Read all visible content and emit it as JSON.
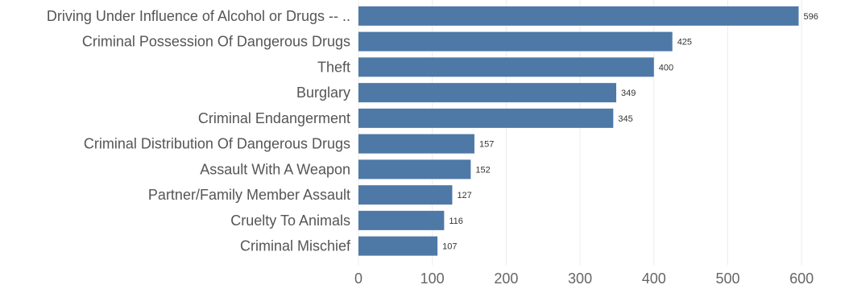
{
  "chart_data": {
    "type": "bar",
    "orientation": "horizontal",
    "title": "",
    "xlabel": "",
    "ylabel": "",
    "categories": [
      "Driving Under Influence of Alcohol or Drugs -- ..",
      "Criminal Possession Of Dangerous Drugs",
      "Theft",
      "Burglary",
      "Criminal Endangerment",
      "Criminal Distribution Of Dangerous Drugs",
      "Assault With A Weapon",
      "Partner/Family Member Assault",
      "Cruelty To Animals",
      "Criminal Mischief"
    ],
    "values": [
      596,
      425,
      400,
      349,
      345,
      157,
      152,
      127,
      116,
      107
    ],
    "xlim": [
      0,
      650
    ],
    "ticks": [
      0,
      100,
      200,
      300,
      400,
      500,
      600
    ],
    "tick_labels": [
      "0",
      "100",
      "200",
      "300",
      "400",
      "500",
      "600"
    ],
    "grid": true,
    "legend": "none",
    "bar_color": "#4e79a7",
    "data_labels": true
  }
}
